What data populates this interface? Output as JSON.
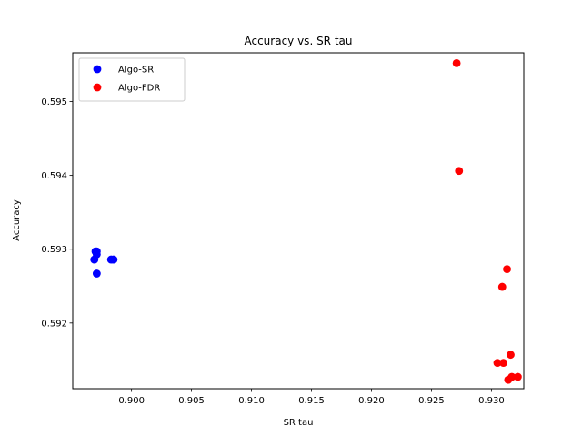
{
  "chart_data": {
    "type": "scatter",
    "title": "Accuracy vs. SR tau",
    "xlabel": "SR tau",
    "ylabel": "Accuracy",
    "xlim": [
      0.8951,
      0.9327
    ],
    "ylim": [
      0.59111,
      0.59566
    ],
    "xticks": [
      0.9,
      0.905,
      0.91,
      0.915,
      0.92,
      0.925,
      0.93
    ],
    "xtick_labels": [
      "0.900",
      "0.905",
      "0.910",
      "0.915",
      "0.920",
      "0.925",
      "0.930"
    ],
    "yticks": [
      0.592,
      0.593,
      0.594,
      0.595
    ],
    "ytick_labels": [
      "0.592",
      "0.593",
      "0.594",
      "0.595"
    ],
    "grid": false,
    "legend_position": "top-left",
    "series": [
      {
        "name": "Algo-SR",
        "color": "#0000ff",
        "points": [
          {
            "x": 0.897,
            "y": 0.59297
          },
          {
            "x": 0.8971,
            "y": 0.59297
          },
          {
            "x": 0.8971,
            "y": 0.59293
          },
          {
            "x": 0.8969,
            "y": 0.59286
          },
          {
            "x": 0.8971,
            "y": 0.59267
          },
          {
            "x": 0.8983,
            "y": 0.59286
          },
          {
            "x": 0.8985,
            "y": 0.59286
          }
        ]
      },
      {
        "name": "Algo-FDR",
        "color": "#ff0000",
        "points": [
          {
            "x": 0.9271,
            "y": 0.59552
          },
          {
            "x": 0.9273,
            "y": 0.59406
          },
          {
            "x": 0.9313,
            "y": 0.59273
          },
          {
            "x": 0.9309,
            "y": 0.59249
          },
          {
            "x": 0.9316,
            "y": 0.59157
          },
          {
            "x": 0.9305,
            "y": 0.59146
          },
          {
            "x": 0.931,
            "y": 0.59146
          },
          {
            "x": 0.9317,
            "y": 0.59127
          },
          {
            "x": 0.9322,
            "y": 0.59127
          },
          {
            "x": 0.9314,
            "y": 0.59123
          }
        ]
      }
    ]
  }
}
